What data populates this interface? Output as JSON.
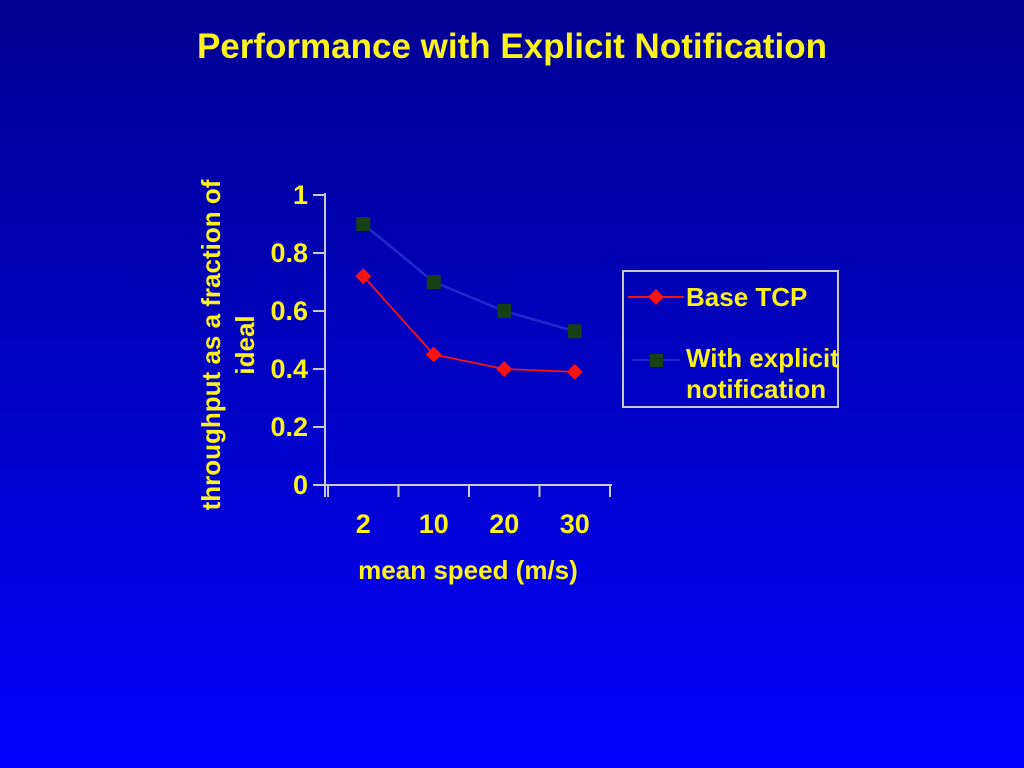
{
  "slide": {
    "title": "Performance with Explicit Notification"
  },
  "chart_data": {
    "type": "line",
    "title": "Performance with Explicit Notification",
    "xlabel": "mean speed (m/s)",
    "ylabel": "throughput as a fraction of ideal",
    "ylabel_line1": "throughput as a fraction of",
    "ylabel_line2": "ideal",
    "categories": [
      "2",
      "10",
      "20",
      "30"
    ],
    "x_values": [
      2,
      10,
      20,
      30
    ],
    "ylim": [
      0,
      1
    ],
    "grid": false,
    "legend_position": "right-overlay",
    "y_ticks": [
      {
        "label": "1",
        "value": 1.0
      },
      {
        "label": "0.8",
        "value": 0.8
      },
      {
        "label": "0.6",
        "value": 0.6
      },
      {
        "label": "0.4",
        "value": 0.4
      },
      {
        "label": "0.2",
        "value": 0.2
      },
      {
        "label": "0",
        "value": 0.0
      }
    ],
    "series": [
      {
        "name": "Base TCP",
        "marker": "diamond",
        "color": "#f51414",
        "line_color": "#f51414",
        "values": [
          0.72,
          0.45,
          0.4,
          0.39
        ]
      },
      {
        "name": "With explicit notification",
        "marker": "square",
        "color": "#164016",
        "line_color": "#2626cf",
        "values": [
          0.9,
          0.7,
          0.6,
          0.53
        ]
      }
    ]
  },
  "colors": {
    "background_top": "#000092",
    "background_mid": "#0101c8",
    "background_bottom": "#0202ff",
    "text_yellow": "#fbf21d",
    "axis": "#c9c9c9",
    "legend_border": "#c9c9c9"
  }
}
